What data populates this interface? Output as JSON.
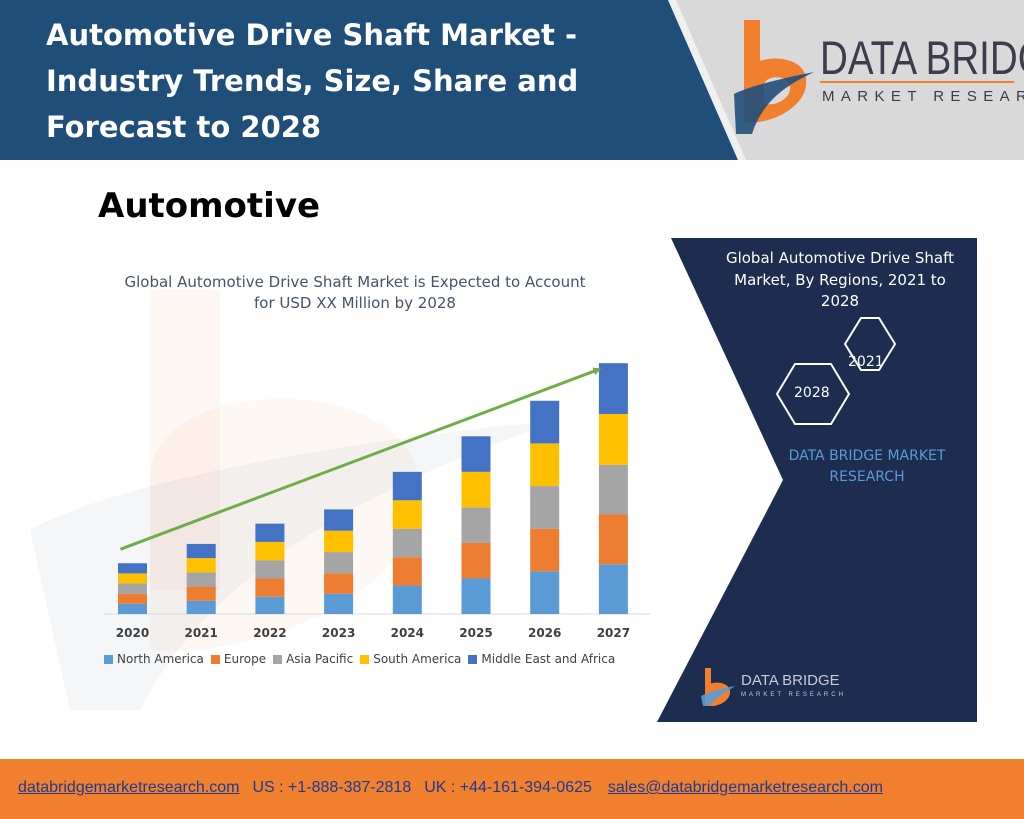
{
  "header": {
    "title_lines": [
      "Automotive Drive Shaft Market -",
      "Industry Trends, Size, Share and",
      "Forecast to 2028"
    ],
    "band_color": "#1f4e79",
    "logo_line1": "DATA BRIDGE",
    "logo_line2": "MARKET RESEARCH",
    "logo_accent": "#f07f2e"
  },
  "section_title": "Automotive",
  "chart_data": {
    "type": "bar",
    "stacked": true,
    "title_lines": [
      "Global Automotive Drive Shaft Market is Expected to Account",
      "for USD XX Million by 2028"
    ],
    "categories": [
      "2020",
      "2021",
      "2022",
      "2023",
      "2024",
      "2025",
      "2026",
      "2027"
    ],
    "series": [
      {
        "name": "North America",
        "color": "#5b9bd5",
        "values": [
          10,
          13,
          17,
          20,
          28,
          35,
          42,
          49
        ]
      },
      {
        "name": "Europe",
        "color": "#ed7d31",
        "values": [
          10,
          14,
          18,
          20,
          28,
          35,
          42,
          49
        ]
      },
      {
        "name": "Asia Pacific",
        "color": "#a5a5a5",
        "values": [
          10,
          14,
          18,
          21,
          28,
          35,
          42,
          49
        ]
      },
      {
        "name": "South America",
        "color": "#ffc000",
        "values": [
          10,
          14,
          18,
          21,
          28,
          35,
          42,
          50
        ]
      },
      {
        "name": "Middle East and Africa",
        "color": "#4472c4",
        "values": [
          10,
          14,
          18,
          21,
          28,
          35,
          42,
          50
        ]
      }
    ],
    "ylim": [
      0,
      260
    ],
    "trend_arrow": {
      "color": "#70ad47",
      "from_category": "2020",
      "to_category": "2027"
    },
    "legend_position": "bottom",
    "grid": false
  },
  "panel": {
    "title_lines": [
      "Global Automotive Drive Shaft",
      "Market, By Regions, 2021 to",
      "2028"
    ],
    "hex_a": "2021",
    "hex_b": "2028",
    "brand_lines": [
      "DATA BRIDGE MARKET",
      "RESEARCH"
    ],
    "mini_logo_line1": "DATA BRIDGE",
    "mini_logo_line2": "MARKET RESEARCH",
    "bg_color": "#1c2d4f"
  },
  "footer": {
    "website": "databridgemarketresearch.com",
    "us_phone": "US : +1-888-387-2818",
    "uk_phone": "UK : +44-161-394-0625",
    "email": "sales@databridgemarketresearch.com"
  }
}
